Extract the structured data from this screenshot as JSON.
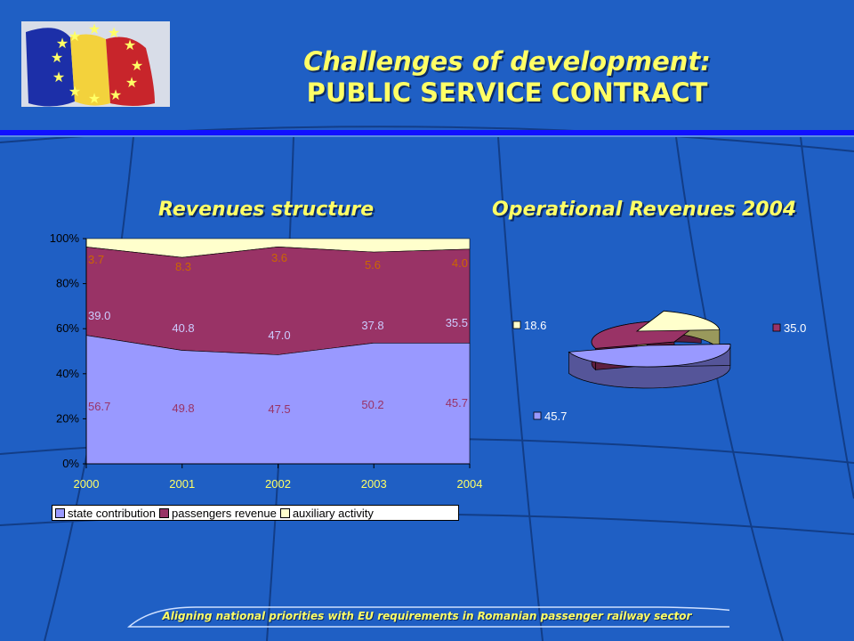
{
  "title": {
    "line1": "Challenges of development:",
    "line2": "PUBLIC SERVICE CONTRACT"
  },
  "footer": "Aligning national priorities with EU requirements in Romanian passenger railway  sector",
  "colors": {
    "background": "#1f5fc4",
    "title": "#ffff66",
    "state": "#9999ff",
    "passengers": "#993366",
    "auxiliary": "#ffffcc"
  },
  "chart_data": [
    {
      "type": "area",
      "title": "Revenues structure",
      "x": [
        "2000",
        "2001",
        "2002",
        "2003",
        "2004"
      ],
      "stacking": "percent",
      "y_ticks": [
        "0%",
        "20%",
        "40%",
        "60%",
        "80%",
        "100%"
      ],
      "ylim": [
        0,
        100
      ],
      "series": [
        {
          "name": "state contribution",
          "color": "#9999ff",
          "values": [
            56.7,
            49.8,
            47.5,
            50.2,
            45.7
          ]
        },
        {
          "name": "passengers revenue",
          "color": "#993366",
          "values": [
            39.0,
            40.8,
            47.0,
            37.8,
            35.5
          ]
        },
        {
          "name": "auxiliary activity",
          "color": "#ffffcc",
          "values": [
            3.7,
            8.3,
            3.6,
            5.6,
            4.0
          ]
        }
      ],
      "labels": {
        "state": [
          "56.7",
          "49.8",
          "47.5",
          "50.2",
          "45.7"
        ],
        "passengers": [
          "39.0",
          "40.8",
          "47.0",
          "37.8",
          "35.5"
        ],
        "auxiliary": [
          "3.7",
          "8.3",
          "3.6",
          "5.6",
          "4.0"
        ]
      },
      "legend": "bottom"
    },
    {
      "type": "pie",
      "title": "Operational Revenues 2004",
      "slices": [
        {
          "label": "45.7",
          "value": 45.7,
          "color": "#9999ff"
        },
        {
          "label": "35.0",
          "value": 35.0,
          "color": "#993366"
        },
        {
          "label": "18.6",
          "value": 18.6,
          "color": "#ffffcc"
        }
      ]
    }
  ]
}
